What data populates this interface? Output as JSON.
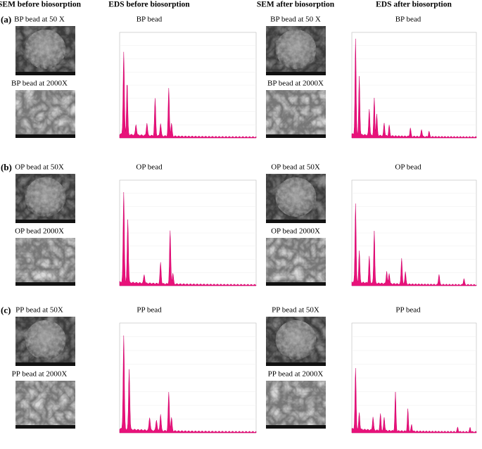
{
  "columns": [
    "SEM before biosorption",
    "EDS before biosorption",
    "SEM after biosorption",
    "EDS after biosorption"
  ],
  "rows": [
    {
      "label": "(a)",
      "before_low": "BP bead at 50 X",
      "before_high": "BP bead at 2000X",
      "eds_before": "BP bead",
      "after_low": "BP bead at 50 X",
      "after_high": "BP bead at 2000X",
      "eds_after": "BP bead"
    },
    {
      "label": "(b)",
      "before_low": "OP bead at 50X",
      "before_high": "OP bead 2000X",
      "eds_before": "OP bead",
      "after_low": "OP bead at 50X",
      "after_high": "OP bead 2000X",
      "eds_after": "OP bead"
    },
    {
      "label": "(c)",
      "before_low": "PP bead at 50X",
      "before_high": "PP bead at 2000X",
      "eds_before": "PP bead",
      "after_low": "PP bead at 50X",
      "after_high": "PP bead at 2000X",
      "eds_after": "PP bead"
    }
  ]
}
